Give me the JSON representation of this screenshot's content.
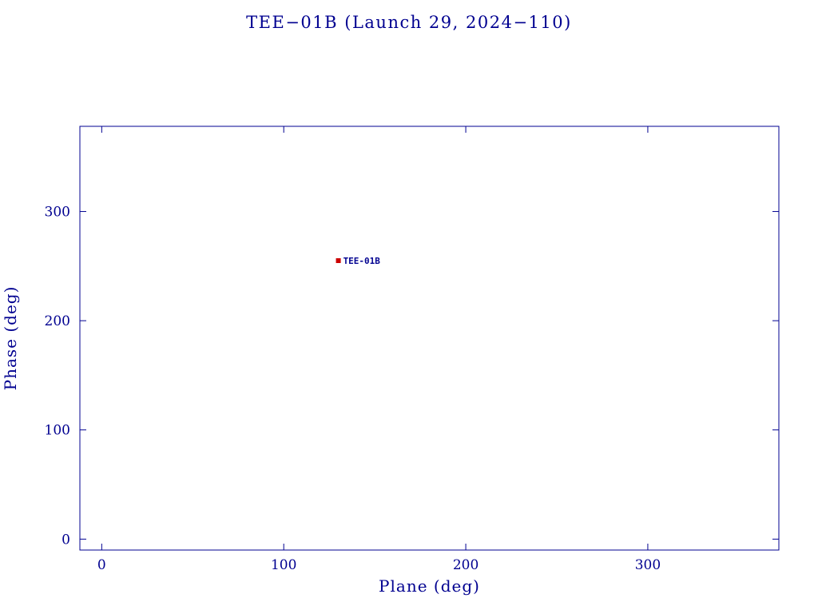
{
  "figure": {
    "title": "TEE−01B (Launch 29, 2024−110)"
  },
  "chart_data": {
    "type": "scatter",
    "title": "TEE−01B (Launch 29, 2024−110)",
    "xlabel": "Plane (deg)",
    "ylabel": "Phase (deg)",
    "xlim": [
      -12,
      372
    ],
    "ylim": [
      -10,
      378
    ],
    "xticks": [
      0,
      100,
      200,
      300
    ],
    "yticks": [
      0,
      100,
      200,
      300
    ],
    "grid": false,
    "legend": false,
    "axis_color": "#000090",
    "background": "#ffffff",
    "points": [
      {
        "label": "TEE-01B",
        "x": 130,
        "y": 255,
        "marker": "square",
        "color": "#cc0000",
        "label_color": "#000090"
      }
    ]
  }
}
